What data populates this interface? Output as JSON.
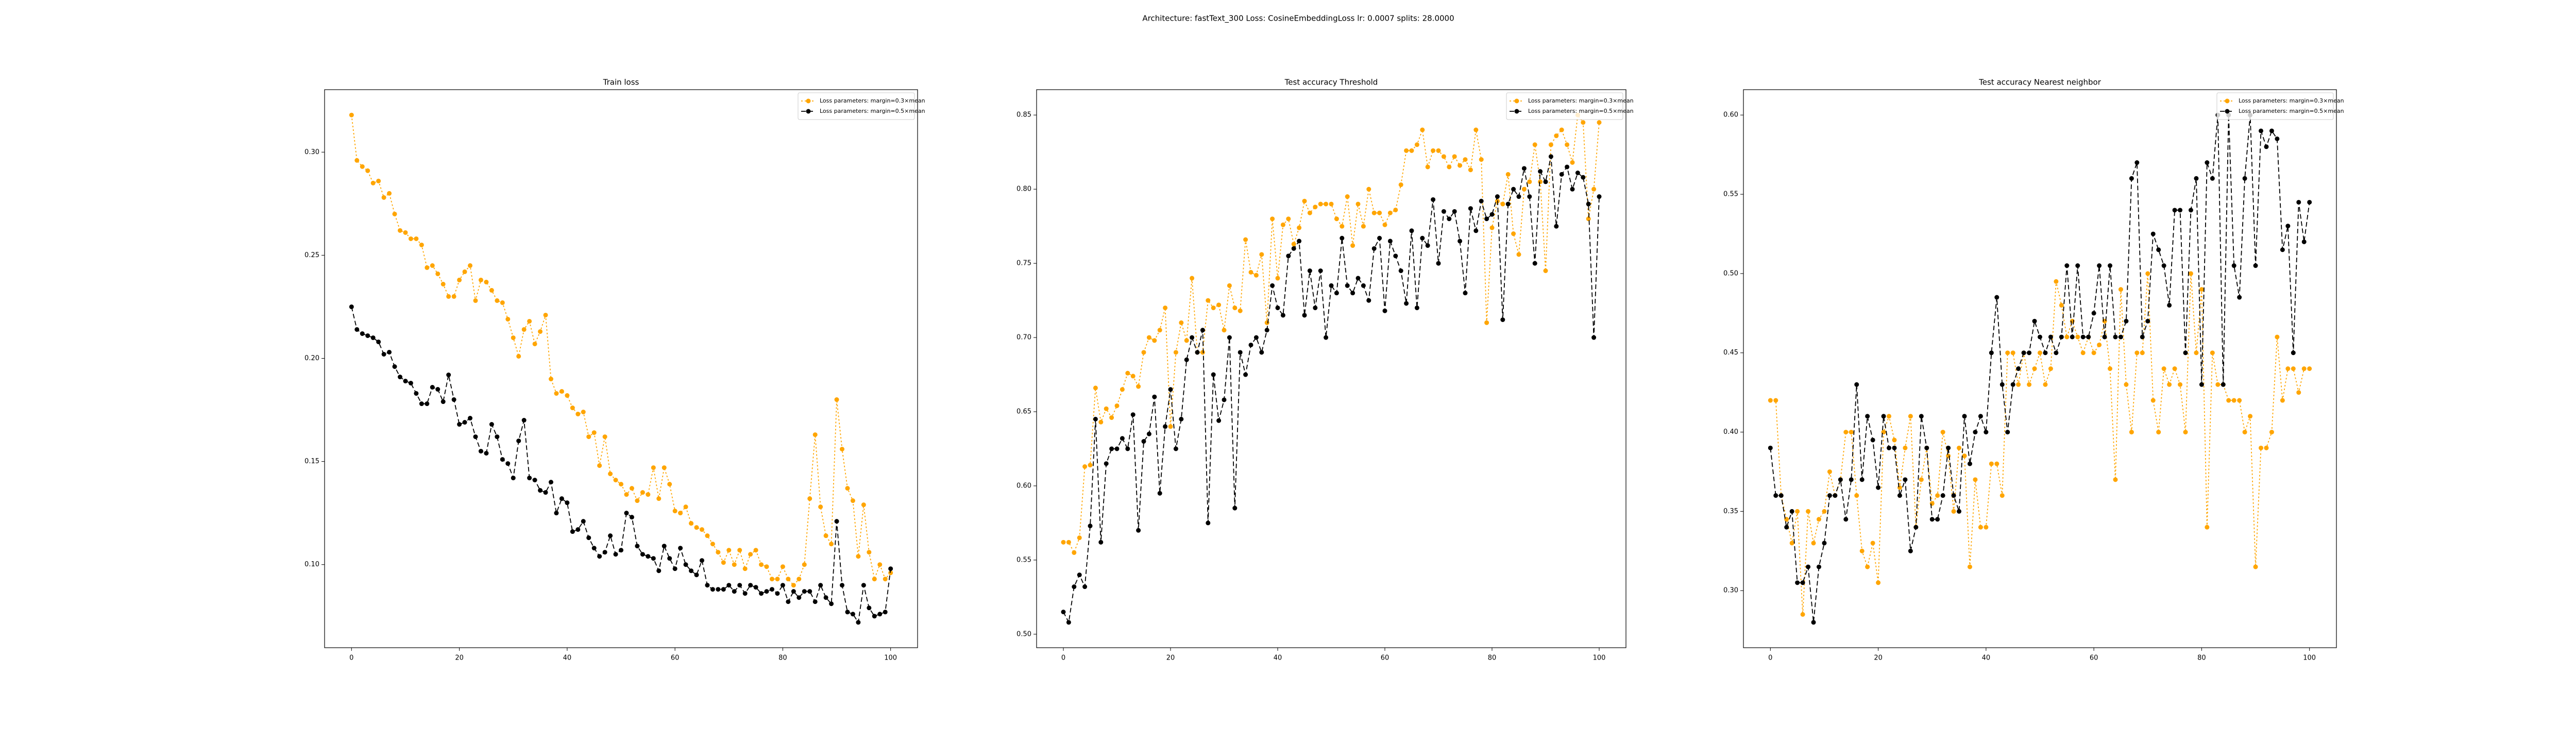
{
  "title": "Architecture: fastText_300 Loss: CosineEmbeddingLoss lr: 0.0007 splits: 28.0000",
  "chart_data": [
    {
      "type": "line",
      "title": "Train loss",
      "legend": "upper right",
      "x": [
        0,
        1,
        2,
        3,
        4,
        5,
        6,
        7,
        8,
        9,
        10,
        11,
        12,
        13,
        14,
        15,
        16,
        17,
        18,
        19,
        20,
        21,
        22,
        23,
        24,
        25,
        26,
        27,
        28,
        29,
        30,
        31,
        32,
        33,
        34,
        35,
        36,
        37,
        38,
        39,
        40,
        41,
        42,
        43,
        44,
        45,
        46,
        47,
        48,
        49,
        50,
        51,
        52,
        53,
        54,
        55,
        56,
        57,
        58,
        59,
        60,
        61,
        62,
        63,
        64,
        65,
        66,
        67,
        68,
        69,
        70,
        71,
        72,
        73,
        74,
        75,
        76,
        77,
        78,
        79,
        80,
        81,
        82,
        83,
        84,
        85,
        86,
        87,
        88,
        89,
        90,
        91,
        92,
        93,
        94,
        95,
        96,
        97,
        98,
        99,
        100
      ],
      "xlim": [
        -5,
        105
      ],
      "xticks": [
        0,
        20,
        40,
        60,
        80,
        100
      ],
      "ylim": [
        0.0597,
        0.3303
      ],
      "yticks": [
        {
          "value": 0.1,
          "label": "0.10"
        },
        0.15,
        {
          "value": 0.2,
          "label": "0.20"
        },
        0.25,
        {
          "value": 0.3,
          "label": "0.30"
        }
      ],
      "series": [
        {
          "name": "Loss parameters: margin=0.3×mean",
          "color": "#ffa500",
          "dash": "dotted",
          "values": [
            0.318,
            0.296,
            0.293,
            0.291,
            0.285,
            0.286,
            0.278,
            0.28,
            0.27,
            0.262,
            0.261,
            0.258,
            0.258,
            0.255,
            0.244,
            0.245,
            0.241,
            0.236,
            0.23,
            0.23,
            0.238,
            0.242,
            0.245,
            0.228,
            0.238,
            0.237,
            0.233,
            0.228,
            0.227,
            0.219,
            0.21,
            0.201,
            0.214,
            0.218,
            0.207,
            0.213,
            0.221,
            0.19,
            0.183,
            0.184,
            0.182,
            0.176,
            0.173,
            0.174,
            0.162,
            0.164,
            0.148,
            0.162,
            0.144,
            0.141,
            0.139,
            0.134,
            0.137,
            0.131,
            0.135,
            0.134,
            0.147,
            0.132,
            0.147,
            0.139,
            0.126,
            0.125,
            0.128,
            0.12,
            0.118,
            0.117,
            0.114,
            0.11,
            0.106,
            0.101,
            0.107,
            0.1,
            0.107,
            0.098,
            0.105,
            0.107,
            0.1,
            0.099,
            0.093,
            0.093,
            0.099,
            0.093,
            0.09,
            0.093,
            0.1,
            0.132,
            0.163,
            0.128,
            0.114,
            0.11,
            0.18,
            0.156,
            0.137,
            0.131,
            0.104,
            0.129,
            0.106,
            0.093,
            0.1,
            0.093,
            0.096
          ]
        },
        {
          "name": "Loss parameters: margin=0.5×mean",
          "color": "#000000",
          "dash": "dashed",
          "values": [
            0.225,
            0.214,
            0.212,
            0.211,
            0.21,
            0.208,
            0.202,
            0.203,
            0.196,
            0.191,
            0.189,
            0.188,
            0.183,
            0.178,
            0.178,
            0.186,
            0.185,
            0.179,
            0.192,
            0.18,
            0.168,
            0.169,
            0.171,
            0.162,
            0.155,
            0.154,
            0.168,
            0.162,
            0.151,
            0.149,
            0.142,
            0.16,
            0.17,
            0.142,
            0.141,
            0.136,
            0.135,
            0.14,
            0.125,
            0.132,
            0.13,
            0.116,
            0.117,
            0.121,
            0.113,
            0.108,
            0.104,
            0.106,
            0.114,
            0.105,
            0.107,
            0.125,
            0.123,
            0.109,
            0.105,
            0.104,
            0.103,
            0.097,
            0.109,
            0.103,
            0.098,
            0.108,
            0.1,
            0.097,
            0.095,
            0.102,
            0.09,
            0.088,
            0.088,
            0.088,
            0.09,
            0.087,
            0.09,
            0.086,
            0.09,
            0.089,
            0.086,
            0.087,
            0.088,
            0.086,
            0.09,
            0.082,
            0.087,
            0.084,
            0.087,
            0.087,
            0.082,
            0.09,
            0.084,
            0.081,
            0.121,
            0.09,
            0.077,
            0.076,
            0.072,
            0.09,
            0.079,
            0.075,
            0.076,
            0.077,
            0.098
          ]
        }
      ]
    },
    {
      "type": "line",
      "title": "Test accuracy Threshold",
      "legend": "upper right",
      "x": [
        0,
        1,
        2,
        3,
        4,
        5,
        6,
        7,
        8,
        9,
        10,
        11,
        12,
        13,
        14,
        15,
        16,
        17,
        18,
        19,
        20,
        21,
        22,
        23,
        24,
        25,
        26,
        27,
        28,
        29,
        30,
        31,
        32,
        33,
        34,
        35,
        36,
        37,
        38,
        39,
        40,
        41,
        42,
        43,
        44,
        45,
        46,
        47,
        48,
        49,
        50,
        51,
        52,
        53,
        54,
        55,
        56,
        57,
        58,
        59,
        60,
        61,
        62,
        63,
        64,
        65,
        66,
        67,
        68,
        69,
        70,
        71,
        72,
        73,
        74,
        75,
        76,
        77,
        78,
        79,
        80,
        81,
        82,
        83,
        84,
        85,
        86,
        87,
        88,
        89,
        90,
        91,
        92,
        93,
        94,
        95,
        96,
        97,
        98,
        99,
        100
      ],
      "xlim": [
        -5,
        105
      ],
      "xticks": [
        0,
        20,
        40,
        60,
        80,
        100
      ],
      "ylim": [
        0.4909,
        0.8671
      ],
      "yticks": [
        {
          "value": 0.5,
          "label": "0.50"
        },
        0.55,
        {
          "value": 0.6,
          "label": "0.60"
        },
        0.65,
        {
          "value": 0.7,
          "label": "0.70"
        },
        0.75,
        {
          "value": 0.8,
          "label": "0.80"
        },
        0.85
      ],
      "series": [
        {
          "name": "Loss parameters: margin=0.3×mean",
          "color": "#ffa500",
          "dash": "dotted",
          "values": [
            0.562,
            0.562,
            0.555,
            0.565,
            0.613,
            0.614,
            0.666,
            0.643,
            0.652,
            0.646,
            0.654,
            0.665,
            0.676,
            0.674,
            0.667,
            0.69,
            0.7,
            0.698,
            0.705,
            0.72,
            0.64,
            0.69,
            0.71,
            0.698,
            0.74,
            0.69,
            0.69,
            0.725,
            0.72,
            0.722,
            0.705,
            0.735,
            0.72,
            0.718,
            0.766,
            0.744,
            0.742,
            0.756,
            0.71,
            0.78,
            0.74,
            0.776,
            0.78,
            0.763,
            0.774,
            0.792,
            0.784,
            0.788,
            0.79,
            0.79,
            0.79,
            0.78,
            0.775,
            0.795,
            0.762,
            0.79,
            0.775,
            0.8,
            0.784,
            0.784,
            0.776,
            0.784,
            0.786,
            0.803,
            0.826,
            0.826,
            0.83,
            0.84,
            0.815,
            0.826,
            0.826,
            0.822,
            0.815,
            0.822,
            0.816,
            0.82,
            0.813,
            0.84,
            0.82,
            0.71,
            0.774,
            0.792,
            0.79,
            0.81,
            0.77,
            0.756,
            0.8,
            0.805,
            0.83,
            0.805,
            0.745,
            0.83,
            0.836,
            0.84,
            0.83,
            0.818,
            0.85,
            0.845,
            0.78,
            0.8,
            0.845
          ]
        },
        {
          "name": "Loss parameters: margin=0.5×mean",
          "color": "#000000",
          "dash": "dashed",
          "values": [
            0.515,
            0.508,
            0.532,
            0.54,
            0.532,
            0.573,
            0.645,
            0.562,
            0.615,
            0.625,
            0.625,
            0.632,
            0.625,
            0.648,
            0.57,
            0.63,
            0.635,
            0.66,
            0.595,
            0.64,
            0.665,
            0.625,
            0.645,
            0.685,
            0.7,
            0.69,
            0.705,
            0.575,
            0.675,
            0.644,
            0.658,
            0.7,
            0.585,
            0.69,
            0.675,
            0.695,
            0.7,
            0.69,
            0.705,
            0.735,
            0.72,
            0.715,
            0.755,
            0.76,
            0.765,
            0.715,
            0.745,
            0.72,
            0.745,
            0.7,
            0.735,
            0.73,
            0.767,
            0.735,
            0.73,
            0.74,
            0.735,
            0.725,
            0.76,
            0.767,
            0.718,
            0.765,
            0.755,
            0.745,
            0.723,
            0.772,
            0.72,
            0.767,
            0.762,
            0.793,
            0.75,
            0.785,
            0.78,
            0.785,
            0.765,
            0.73,
            0.787,
            0.772,
            0.792,
            0.78,
            0.783,
            0.795,
            0.712,
            0.79,
            0.8,
            0.795,
            0.814,
            0.795,
            0.75,
            0.812,
            0.805,
            0.822,
            0.775,
            0.81,
            0.815,
            0.8,
            0.811,
            0.808,
            0.79,
            0.7,
            0.795
          ]
        }
      ]
    },
    {
      "type": "line",
      "title": "Test accuracy Nearest neighbor",
      "legend": "upper right",
      "x": [
        0,
        1,
        2,
        3,
        4,
        5,
        6,
        7,
        8,
        9,
        10,
        11,
        12,
        13,
        14,
        15,
        16,
        17,
        18,
        19,
        20,
        21,
        22,
        23,
        24,
        25,
        26,
        27,
        28,
        29,
        30,
        31,
        32,
        33,
        34,
        35,
        36,
        37,
        38,
        39,
        40,
        41,
        42,
        43,
        44,
        45,
        46,
        47,
        48,
        49,
        50,
        51,
        52,
        53,
        54,
        55,
        56,
        57,
        58,
        59,
        60,
        61,
        62,
        63,
        64,
        65,
        66,
        67,
        68,
        69,
        70,
        71,
        72,
        73,
        74,
        75,
        76,
        77,
        78,
        79,
        80,
        81,
        82,
        83,
        84,
        85,
        86,
        87,
        88,
        89,
        90,
        91,
        92,
        93,
        94,
        95,
        96,
        97,
        98,
        99,
        100
      ],
      "xlim": [
        -5,
        105
      ],
      "xticks": [
        0,
        20,
        40,
        60,
        80,
        100
      ],
      "ylim": [
        0.264,
        0.616
      ],
      "yticks": [
        {
          "value": 0.3,
          "label": "0.30"
        },
        0.35,
        {
          "value": 0.4,
          "label": "0.40"
        },
        0.45,
        {
          "value": 0.5,
          "label": "0.50"
        },
        0.55,
        {
          "value": 0.6,
          "label": "0.60"
        }
      ],
      "series": [
        {
          "name": "Loss parameters: margin=0.3×mean",
          "color": "#ffa500",
          "dash": "dotted",
          "values": [
            0.42,
            0.42,
            0.36,
            0.345,
            0.33,
            0.35,
            0.285,
            0.35,
            0.33,
            0.345,
            0.35,
            0.375,
            0.36,
            0.37,
            0.4,
            0.4,
            0.36,
            0.325,
            0.315,
            0.33,
            0.305,
            0.4,
            0.41,
            0.395,
            0.365,
            0.39,
            0.41,
            0.34,
            0.37,
            0.39,
            0.355,
            0.36,
            0.4,
            0.385,
            0.35,
            0.39,
            0.385,
            0.315,
            0.37,
            0.34,
            0.34,
            0.38,
            0.38,
            0.36,
            0.45,
            0.45,
            0.43,
            0.45,
            0.43,
            0.44,
            0.45,
            0.43,
            0.44,
            0.495,
            0.48,
            0.46,
            0.47,
            0.46,
            0.45,
            0.46,
            0.45,
            0.455,
            0.47,
            0.44,
            0.37,
            0.49,
            0.43,
            0.4,
            0.45,
            0.45,
            0.5,
            0.42,
            0.4,
            0.44,
            0.43,
            0.44,
            0.43,
            0.4,
            0.5,
            0.45,
            0.49,
            0.34,
            0.45,
            0.43,
            0.43,
            0.42,
            0.42,
            0.42,
            0.4,
            0.41,
            0.315,
            0.39,
            0.39,
            0.4,
            0.46,
            0.42,
            0.44,
            0.44,
            0.425,
            0.44,
            0.44
          ]
        },
        {
          "name": "Loss parameters: margin=0.5×mean",
          "color": "#000000",
          "dash": "dashed",
          "values": [
            0.39,
            0.36,
            0.36,
            0.34,
            0.35,
            0.305,
            0.305,
            0.315,
            0.28,
            0.315,
            0.33,
            0.36,
            0.36,
            0.37,
            0.345,
            0.37,
            0.43,
            0.37,
            0.41,
            0.395,
            0.365,
            0.41,
            0.39,
            0.39,
            0.36,
            0.37,
            0.325,
            0.34,
            0.41,
            0.39,
            0.345,
            0.345,
            0.36,
            0.39,
            0.36,
            0.35,
            0.41,
            0.38,
            0.4,
            0.41,
            0.4,
            0.45,
            0.485,
            0.43,
            0.4,
            0.43,
            0.44,
            0.45,
            0.45,
            0.47,
            0.46,
            0.45,
            0.46,
            0.45,
            0.46,
            0.505,
            0.46,
            0.505,
            0.46,
            0.46,
            0.475,
            0.505,
            0.46,
            0.505,
            0.46,
            0.46,
            0.47,
            0.56,
            0.57,
            0.46,
            0.47,
            0.525,
            0.515,
            0.505,
            0.48,
            0.54,
            0.54,
            0.45,
            0.54,
            0.56,
            0.43,
            0.57,
            0.56,
            0.6,
            0.43,
            0.6,
            0.505,
            0.485,
            0.56,
            0.6,
            0.505,
            0.59,
            0.58,
            0.59,
            0.585,
            0.515,
            0.53,
            0.45,
            0.545,
            0.52,
            0.545
          ]
        }
      ]
    }
  ]
}
